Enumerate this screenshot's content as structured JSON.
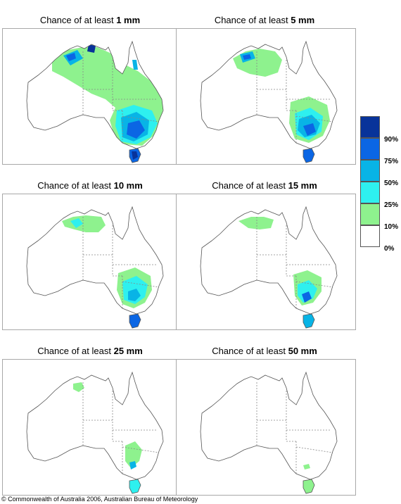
{
  "panels": [
    {
      "prefix": "Chance of at least ",
      "amount": "1 mm"
    },
    {
      "prefix": "Chance of at least ",
      "amount": "5 mm"
    },
    {
      "prefix": "Chance of at least ",
      "amount": "10 mm"
    },
    {
      "prefix": "Chance of at least ",
      "amount": "15 mm"
    },
    {
      "prefix": "Chance of at least ",
      "amount": "25 mm"
    },
    {
      "prefix": "Chance of at least ",
      "amount": "50 mm"
    }
  ],
  "legend": {
    "labels": [
      "90%",
      "75%",
      "50%",
      "25%",
      "10%",
      "0%"
    ],
    "colors": [
      "#08339a",
      "#0b66e4",
      "#08b4e6",
      "#2ef0ef",
      "#8ef28e",
      "#ffffff"
    ]
  },
  "footer": {
    "copyright": "© Commonwealth of Australia 2006, Australian Bureau of Meteorology"
  }
}
